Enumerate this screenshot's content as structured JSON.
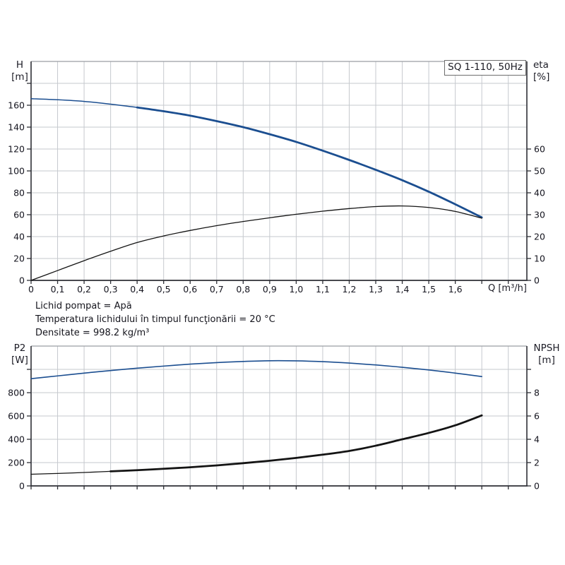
{
  "pump_box_label": "SQ 1-110, 50Hz",
  "info_block": {
    "line1": "Lichid pompat = Apă",
    "line2": "Temperatura lichidului în timpul funcţionării = 20 °C",
    "line3": "Densitate = 998.2 kg/m³"
  },
  "colors": {
    "curve_blue": "#1b4e90",
    "curve_black": "#141414",
    "grid": "#c6c9ce",
    "axis": "#2e2f36",
    "frame": "#9b9ea3",
    "text": "#15151f"
  },
  "chart_data": [
    {
      "type": "line",
      "title": "SQ 1-110, 50Hz",
      "xlabel": "Q [m³/h]",
      "ylabel_left_lines": [
        "H",
        "[m]"
      ],
      "ylabel_right_lines": [
        "eta",
        "[%]"
      ],
      "xlim": [
        0,
        1.87
      ],
      "x_grid_step": 0.1,
      "x_tick_labels": [
        [
          "0",
          0
        ],
        [
          "0,1",
          0.1
        ],
        [
          "0,2",
          0.2
        ],
        [
          "0,3",
          0.3
        ],
        [
          "0,4",
          0.4
        ],
        [
          "0,5",
          0.5
        ],
        [
          "0,6",
          0.6
        ],
        [
          "0,7",
          0.7
        ],
        [
          "0,8",
          0.8
        ],
        [
          "0,9",
          0.9
        ],
        [
          "1,0",
          1.0
        ],
        [
          "1,1",
          1.1
        ],
        [
          "1,2",
          1.2
        ],
        [
          "1,3",
          1.3
        ],
        [
          "1,4",
          1.4
        ],
        [
          "1,5",
          1.5
        ],
        [
          "1,6",
          1.6
        ]
      ],
      "ylim_left": [
        0,
        200
      ],
      "y_grid_step_left": 20,
      "left_tick_labels": [
        [
          "0",
          0
        ],
        [
          "20",
          20
        ],
        [
          "40",
          40
        ],
        [
          "60",
          60
        ],
        [
          "80",
          80
        ],
        [
          "100",
          100
        ],
        [
          "120",
          120
        ],
        [
          "140",
          140
        ],
        [
          "160",
          160
        ]
      ],
      "left_tick_max": 180,
      "ylim_right": [
        0,
        100
      ],
      "y_tick_step_right": 10,
      "right_tick_labels": [
        [
          "0",
          0
        ],
        [
          "10",
          10
        ],
        [
          "20",
          20
        ],
        [
          "30",
          30
        ],
        [
          "40",
          40
        ],
        [
          "50",
          50
        ],
        [
          "60",
          60
        ]
      ],
      "right_tick_max": 60,
      "series": [
        {
          "name": "head-curve",
          "axis": "left",
          "color_key": "curve_blue",
          "width": 2.8,
          "thin_width": 1.5,
          "thick_from": 0.32,
          "points": [
            [
              0,
              166
            ],
            [
              0.1,
              165
            ],
            [
              0.2,
              163.5
            ],
            [
              0.3,
              161
            ],
            [
              0.4,
              158
            ],
            [
              0.5,
              154.5
            ],
            [
              0.6,
              150.5
            ],
            [
              0.7,
              145.5
            ],
            [
              0.8,
              140
            ],
            [
              0.9,
              133.5
            ],
            [
              1.0,
              126.5
            ],
            [
              1.1,
              118.5
            ],
            [
              1.2,
              110
            ],
            [
              1.3,
              101
            ],
            [
              1.4,
              91.5
            ],
            [
              1.5,
              81
            ],
            [
              1.6,
              69.5
            ],
            [
              1.7,
              57.5
            ]
          ]
        },
        {
          "name": "eta-curve",
          "axis": "right",
          "color_key": "curve_black",
          "width": 1.3,
          "points": [
            [
              0,
              0
            ],
            [
              0.1,
              4.5
            ],
            [
              0.2,
              9
            ],
            [
              0.3,
              13.3
            ],
            [
              0.4,
              17.3
            ],
            [
              0.5,
              20.3
            ],
            [
              0.6,
              22.8
            ],
            [
              0.7,
              25
            ],
            [
              0.8,
              26.9
            ],
            [
              0.9,
              28.6
            ],
            [
              1.0,
              30.2
            ],
            [
              1.1,
              31.6
            ],
            [
              1.2,
              32.8
            ],
            [
              1.3,
              33.7
            ],
            [
              1.4,
              34
            ],
            [
              1.5,
              33.3
            ],
            [
              1.6,
              31.5
            ],
            [
              1.7,
              28.4
            ]
          ]
        }
      ]
    },
    {
      "type": "line",
      "title": "",
      "xlabel": "",
      "ylabel_left_lines": [
        "P2",
        "[W]"
      ],
      "ylabel_right_lines": [
        "NPSH",
        "[m]"
      ],
      "xlim": [
        0,
        1.87
      ],
      "x_grid_step": 0.1,
      "x_tick_labels": [],
      "ylim_left": [
        0,
        1200
      ],
      "y_grid_step_left": 200,
      "left_tick_labels": [
        [
          "0",
          0
        ],
        [
          "200",
          200
        ],
        [
          "400",
          400
        ],
        [
          "600",
          600
        ],
        [
          "800",
          800
        ]
      ],
      "left_tick_max": 1000,
      "ylim_right": [
        0,
        12
      ],
      "y_tick_step_right": 2,
      "right_tick_labels": [
        [
          "0",
          0
        ],
        [
          "2",
          2
        ],
        [
          "4",
          4
        ],
        [
          "6",
          6
        ],
        [
          "8",
          8
        ]
      ],
      "right_tick_max": 10,
      "series": [
        {
          "name": "p2-curve",
          "axis": "left",
          "color_key": "curve_blue",
          "width": 1.6,
          "points": [
            [
              0,
              920
            ],
            [
              0.1,
              944
            ],
            [
              0.2,
              968
            ],
            [
              0.3,
              990
            ],
            [
              0.4,
              1010
            ],
            [
              0.5,
              1028
            ],
            [
              0.6,
              1045
            ],
            [
              0.7,
              1058
            ],
            [
              0.8,
              1068
            ],
            [
              0.9,
              1074
            ],
            [
              1.0,
              1073
            ],
            [
              1.1,
              1066
            ],
            [
              1.2,
              1054
            ],
            [
              1.3,
              1038
            ],
            [
              1.4,
              1018
            ],
            [
              1.5,
              995
            ],
            [
              1.6,
              968
            ],
            [
              1.7,
              938
            ]
          ]
        },
        {
          "name": "npsh-curve",
          "axis": "right",
          "color_key": "curve_black",
          "width": 2.8,
          "thin_width": 1.3,
          "thick_from": 0.3,
          "points": [
            [
              0,
              1.0
            ],
            [
              0.1,
              1.07
            ],
            [
              0.2,
              1.15
            ],
            [
              0.3,
              1.25
            ],
            [
              0.4,
              1.35
            ],
            [
              0.5,
              1.47
            ],
            [
              0.6,
              1.6
            ],
            [
              0.7,
              1.76
            ],
            [
              0.8,
              1.95
            ],
            [
              0.9,
              2.16
            ],
            [
              1.0,
              2.4
            ],
            [
              1.1,
              2.68
            ],
            [
              1.2,
              3.0
            ],
            [
              1.3,
              3.45
            ],
            [
              1.4,
              4.0
            ],
            [
              1.5,
              4.55
            ],
            [
              1.6,
              5.2
            ],
            [
              1.7,
              6.05
            ]
          ]
        }
      ]
    }
  ]
}
